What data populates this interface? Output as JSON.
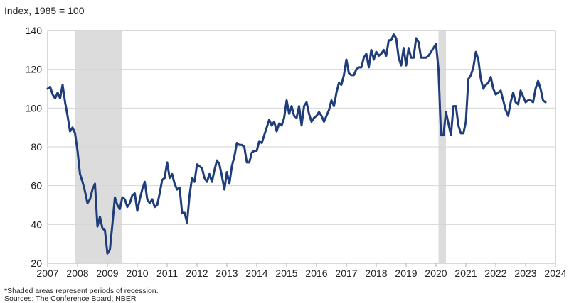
{
  "chart_data": {
    "type": "line",
    "title": "",
    "ylabel": "Index, 1985 = 100",
    "xlabel": "",
    "ylim": [
      20,
      140
    ],
    "xlim": [
      2007,
      2024
    ],
    "y_ticks": [
      20,
      40,
      60,
      80,
      100,
      120,
      140
    ],
    "x_ticks": [
      "2007",
      "2008",
      "2009",
      "2010",
      "2011",
      "2012",
      "2013",
      "2014",
      "2015",
      "2016",
      "2017",
      "2018",
      "2019",
      "2020",
      "2021",
      "2022",
      "2023",
      "2024"
    ],
    "grid": "horizontal",
    "legend": "none",
    "recessions": [
      {
        "start": 2007.917,
        "end": 2009.5
      },
      {
        "start": 2020.083,
        "end": 2020.333
      }
    ],
    "series": [
      {
        "color": "#1f3d7a",
        "start_year": 2007,
        "frequency": "monthly",
        "values": [
          110,
          111,
          107,
          105,
          108,
          105,
          112,
          103,
          96,
          88,
          90,
          87,
          78,
          66,
          62,
          57,
          51,
          53,
          58,
          61,
          39,
          44,
          38,
          37,
          25,
          27,
          40,
          54,
          50,
          48,
          54,
          53,
          49,
          51,
          55,
          56,
          47,
          53,
          58,
          62,
          53,
          51,
          53,
          49,
          50,
          56,
          63,
          64,
          72,
          64,
          66,
          61,
          58,
          59,
          46,
          46,
          41,
          55,
          64,
          62,
          71,
          70,
          69,
          64,
          62,
          66,
          62,
          68,
          73,
          71,
          65,
          58,
          67,
          61,
          70,
          75,
          82,
          81,
          81,
          80,
          72,
          72,
          77,
          78,
          78,
          83,
          82,
          86,
          90,
          94,
          91,
          93,
          88,
          92,
          91,
          95,
          104,
          97,
          101,
          96,
          95,
          101,
          91,
          101,
          103,
          97,
          93,
          95,
          96,
          98,
          96,
          93,
          96,
          99,
          104,
          101,
          108,
          113,
          112,
          117,
          125,
          118,
          117,
          117,
          120,
          121,
          121,
          126,
          128,
          121,
          130,
          125,
          129,
          127,
          128,
          130,
          127,
          135,
          135,
          138,
          136,
          126,
          122,
          131,
          122,
          131,
          126,
          126,
          136,
          134,
          126,
          126,
          126,
          127,
          129,
          131,
          133,
          120,
          86,
          86,
          98,
          92,
          86,
          101,
          101,
          91,
          87,
          87,
          93,
          115,
          117,
          121,
          129,
          125,
          115,
          110,
          112,
          113,
          116,
          110,
          107,
          108,
          109,
          104,
          99,
          96,
          103,
          108,
          103,
          102,
          109,
          106,
          103,
          104,
          104,
          103,
          110,
          114,
          110,
          104,
          103
        ]
      }
    ],
    "footnote_lines": [
      "*Shaded areas represent periods of recession.",
      "Sources: The Conference Board; NBER"
    ]
  }
}
